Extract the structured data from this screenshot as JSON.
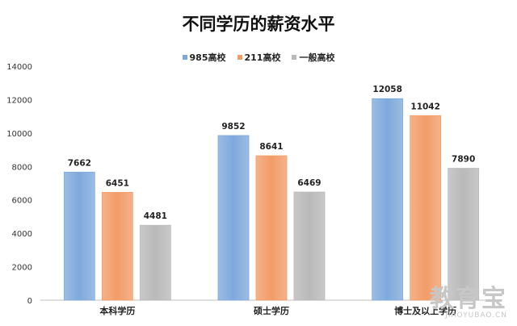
{
  "chart_data": {
    "type": "bar",
    "title": "不同学历的薪资水平",
    "categories": [
      "本科学历",
      "硕士学历",
      "博士及以上学历"
    ],
    "series": [
      {
        "name": "985高校",
        "values": [
          7662,
          9852,
          12058
        ],
        "color": "#7fa9dc"
      },
      {
        "name": "211高校",
        "values": [
          6451,
          8641,
          11042
        ],
        "color": "#f29c69"
      },
      {
        "name": "一般高校",
        "values": [
          4481,
          6469,
          7890
        ],
        "color": "#b9b9b9"
      }
    ],
    "ylim": [
      0,
      14000
    ],
    "yticks": [
      0,
      2000,
      4000,
      6000,
      8000,
      10000,
      12000,
      14000
    ],
    "grid": false,
    "legend_position": "top-center",
    "data_labels": true
  },
  "watermark": {
    "logo": "教育宝",
    "url": "JIAOYUBAO.CN"
  }
}
